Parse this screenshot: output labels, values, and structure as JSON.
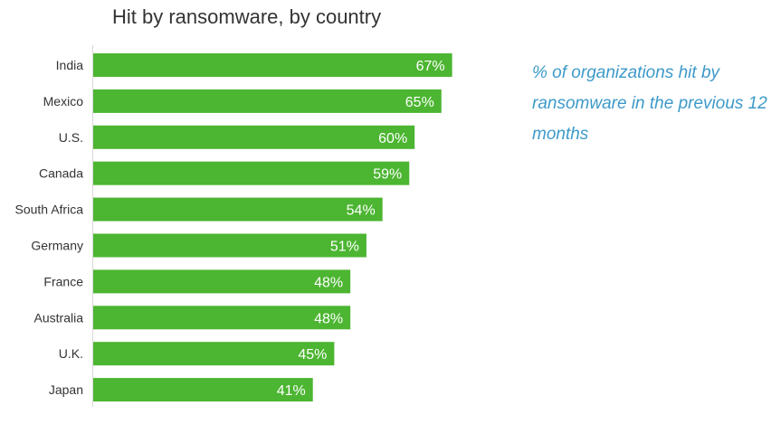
{
  "chart_data": {
    "type": "bar",
    "orientation": "horizontal",
    "title": "Hit by ransomware, by country",
    "annotation": "% of organizations hit by ransomware in the previous 12 months",
    "categories": [
      "India",
      "Mexico",
      "U.S.",
      "Canada",
      "South Africa",
      "Germany",
      "France",
      "Australia",
      "U.K.",
      "Japan"
    ],
    "values": [
      67,
      65,
      60,
      59,
      54,
      51,
      48,
      48,
      45,
      41
    ],
    "data_labels": [
      "67%",
      "65%",
      "60%",
      "59%",
      "54%",
      "51%",
      "48%",
      "48%",
      "45%",
      "41%"
    ],
    "xlim": [
      0,
      100
    ],
    "grid": false,
    "legend": "none",
    "bar_color": "#4cb531",
    "label_color": "#ffffff"
  }
}
